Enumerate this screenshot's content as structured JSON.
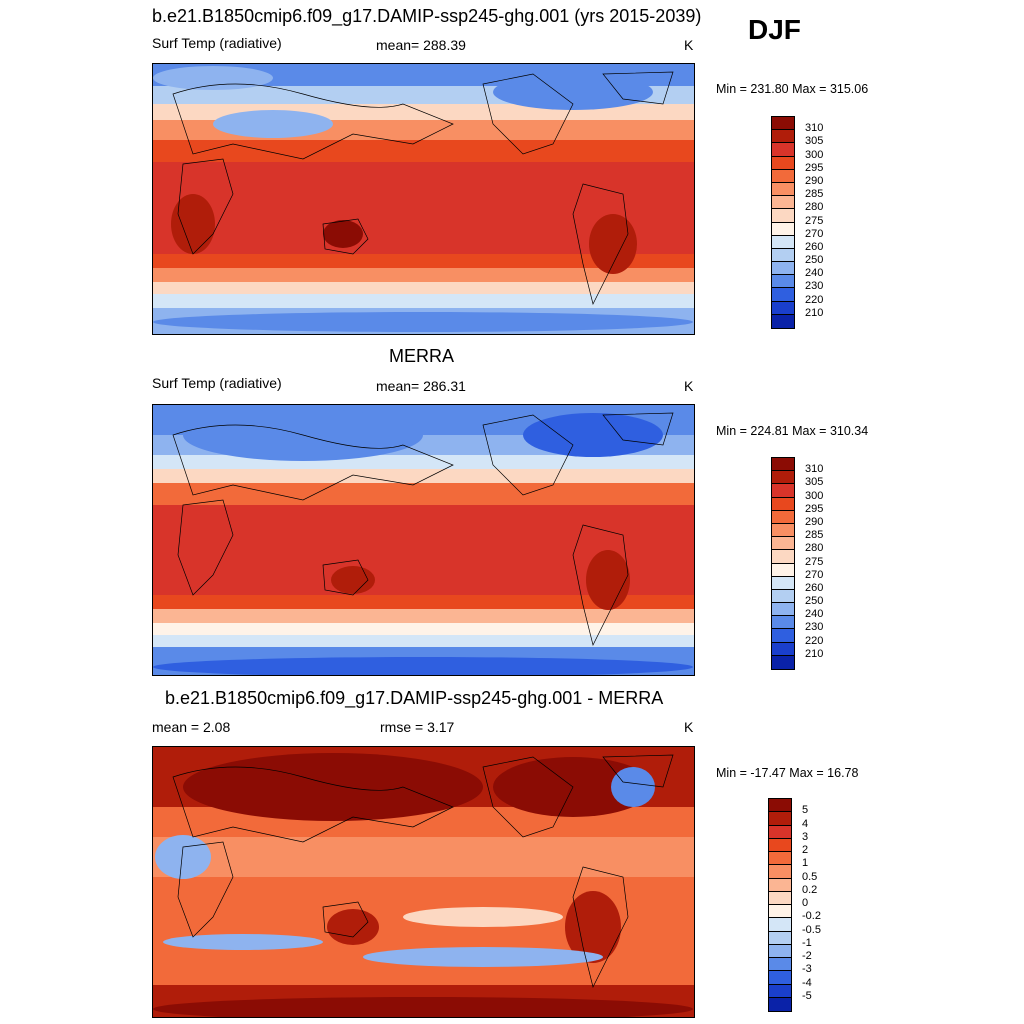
{
  "season": "DJF",
  "panels": [
    {
      "title": "b.e21.B1850cmip6.f09_g17.DAMIP-ssp245-ghg.001 (yrs 2015-2039)",
      "left_label": "Surf Temp (radiative)",
      "center_label": "mean= 288.39",
      "units": "K",
      "minmax": "Min = 231.80 Max = 315.06",
      "colorbar": {
        "labels": [
          "310",
          "305",
          "300",
          "295",
          "290",
          "285",
          "280",
          "275",
          "270",
          "260",
          "250",
          "240",
          "230",
          "220",
          "210"
        ],
        "colors": [
          "#8b0c04",
          "#b01d0a",
          "#d8342a",
          "#e8481e",
          "#f26a3a",
          "#f88f63",
          "#fbb593",
          "#fcd8c2",
          "#fff3e8",
          "#d4e6f7",
          "#b3cff2",
          "#8eb3ef",
          "#5a8ae8",
          "#2f5fe0",
          "#1a3fcc",
          "#0a22a8"
        ]
      }
    },
    {
      "title": "MERRA",
      "left_label": "Surf Temp (radiative)",
      "center_label": "mean= 286.31",
      "units": "K",
      "minmax": "Min = 224.81 Max = 310.34",
      "colorbar": {
        "labels": [
          "310",
          "305",
          "300",
          "295",
          "290",
          "285",
          "280",
          "275",
          "270",
          "260",
          "250",
          "240",
          "230",
          "220",
          "210"
        ],
        "colors": [
          "#8b0c04",
          "#b01d0a",
          "#d8342a",
          "#e8481e",
          "#f26a3a",
          "#f88f63",
          "#fbb593",
          "#fcd8c2",
          "#fff3e8",
          "#d4e6f7",
          "#b3cff2",
          "#8eb3ef",
          "#5a8ae8",
          "#2f5fe0",
          "#1a3fcc",
          "#0a22a8"
        ]
      }
    },
    {
      "title": "b.e21.B1850cmip6.f09_g17.DAMIP-ssp245-ghg.001 - MERRA",
      "left_label": "mean =   2.08",
      "center_label": "rmse =   3.17",
      "units": "K",
      "minmax": "Min = -17.47 Max =  16.78",
      "colorbar": {
        "labels": [
          "5",
          "4",
          "3",
          "2",
          "1",
          "0.5",
          "0.2",
          "0",
          "-0.2",
          "-0.5",
          "-1",
          "-2",
          "-3",
          "-4",
          "-5"
        ],
        "colors": [
          "#8b0c04",
          "#b01d0a",
          "#d8342a",
          "#e8481e",
          "#f26a3a",
          "#f88f63",
          "#fbb593",
          "#fcd8c2",
          "#fff3e8",
          "#d4e6f7",
          "#b3cff2",
          "#8eb3ef",
          "#5a8ae8",
          "#2f5fe0",
          "#1a3fcc",
          "#0a22a8"
        ]
      }
    }
  ]
}
